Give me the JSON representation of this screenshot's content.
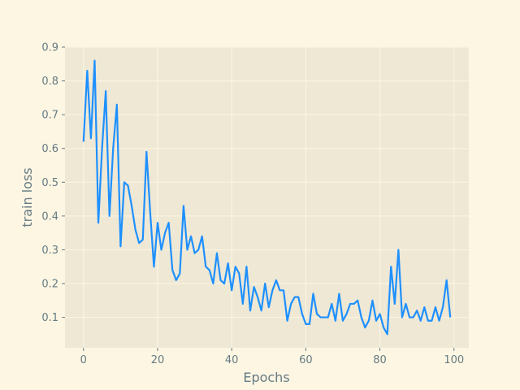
{
  "chart_data": {
    "type": "line",
    "xlabel": "Epochs",
    "ylabel": "train loss",
    "xlim": [
      -5,
      104
    ],
    "ylim": [
      0.01,
      0.9
    ],
    "xticks": [
      0,
      20,
      40,
      60,
      80,
      100
    ],
    "yticks": [
      0.1,
      0.2,
      0.3,
      0.4,
      0.5,
      0.6,
      0.7,
      0.8,
      0.9
    ],
    "xtick_labels": [
      "0",
      "20",
      "40",
      "60",
      "80",
      "100"
    ],
    "ytick_labels": [
      "0.1",
      "0.2",
      "0.3",
      "0.4",
      "0.5",
      "0.6",
      "0.7",
      "0.8",
      "0.9"
    ],
    "grid": true,
    "series": [
      {
        "color": "#1e90ff",
        "x": [
          0,
          1,
          2,
          3,
          4,
          5,
          6,
          7,
          8,
          9,
          10,
          11,
          12,
          13,
          14,
          15,
          16,
          17,
          18,
          19,
          20,
          21,
          22,
          23,
          24,
          25,
          26,
          27,
          28,
          29,
          30,
          31,
          32,
          33,
          34,
          35,
          36,
          37,
          38,
          39,
          40,
          41,
          42,
          43,
          44,
          45,
          46,
          47,
          48,
          49,
          50,
          51,
          52,
          53,
          54,
          55,
          56,
          57,
          58,
          59,
          60,
          61,
          62,
          63,
          64,
          65,
          66,
          67,
          68,
          69,
          70,
          71,
          72,
          73,
          74,
          75,
          76,
          77,
          78,
          79,
          80,
          81,
          82,
          83,
          84,
          85,
          86,
          87,
          88,
          89,
          90,
          91,
          92,
          93,
          94,
          95,
          96,
          97,
          98,
          99
        ],
        "y": [
          0.62,
          0.83,
          0.63,
          0.86,
          0.38,
          0.6,
          0.77,
          0.4,
          0.6,
          0.73,
          0.31,
          0.5,
          0.49,
          0.43,
          0.36,
          0.32,
          0.33,
          0.59,
          0.41,
          0.25,
          0.38,
          0.3,
          0.35,
          0.38,
          0.24,
          0.21,
          0.23,
          0.43,
          0.3,
          0.34,
          0.29,
          0.3,
          0.34,
          0.25,
          0.24,
          0.2,
          0.29,
          0.21,
          0.2,
          0.26,
          0.18,
          0.25,
          0.23,
          0.14,
          0.25,
          0.12,
          0.19,
          0.16,
          0.12,
          0.2,
          0.13,
          0.18,
          0.21,
          0.18,
          0.18,
          0.09,
          0.14,
          0.16,
          0.16,
          0.11,
          0.08,
          0.08,
          0.17,
          0.11,
          0.1,
          0.1,
          0.1,
          0.14,
          0.09,
          0.17,
          0.09,
          0.11,
          0.14,
          0.14,
          0.15,
          0.1,
          0.07,
          0.09,
          0.15,
          0.09,
          0.11,
          0.07,
          0.05,
          0.25,
          0.14,
          0.3,
          0.1,
          0.14,
          0.1,
          0.1,
          0.12,
          0.09,
          0.13,
          0.09,
          0.09,
          0.13,
          0.09,
          0.13,
          0.21,
          0.1
        ]
      }
    ]
  }
}
